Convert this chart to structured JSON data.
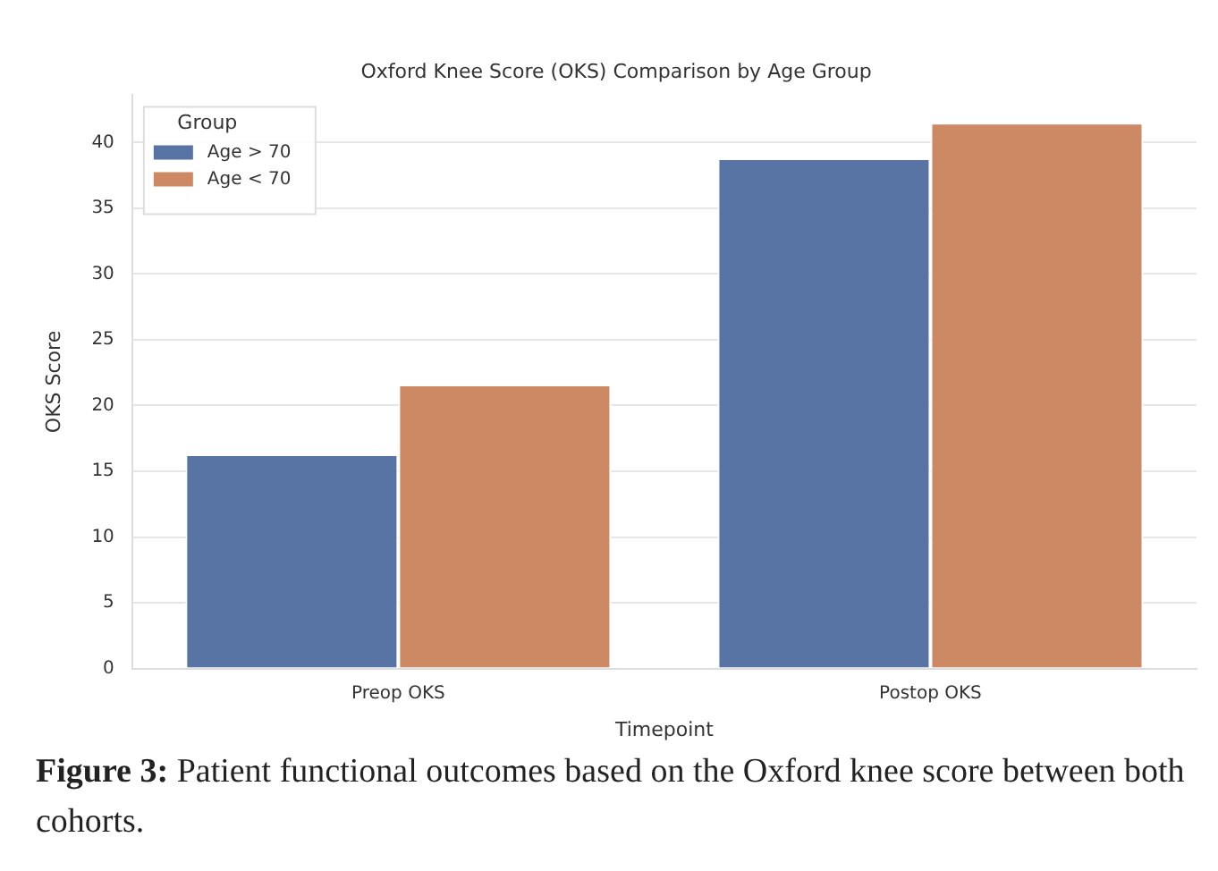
{
  "chart_data": {
    "type": "bar",
    "title": "Oxford Knee Score (OKS) Comparison by Age Group",
    "xlabel": "Timepoint",
    "ylabel": "OKS Score",
    "legend_title": "Group",
    "categories": [
      "Preop OKS",
      "Postop OKS"
    ],
    "series": [
      {
        "name": "Age > 70",
        "color": "#5874a4",
        "values": [
          16.3,
          38.8
        ]
      },
      {
        "name": "Age < 70",
        "color": "#cc8963",
        "values": [
          21.6,
          41.5
        ]
      }
    ],
    "ylim": [
      0,
      43.6
    ],
    "yticks": [
      0,
      5,
      10,
      15,
      20,
      25,
      30,
      35,
      40
    ],
    "grid": "y",
    "legend": "top left",
    "annotations": [
      "Figure 3: Patient functional outcomes based on the Oxford knee score between both cohorts."
    ]
  }
}
